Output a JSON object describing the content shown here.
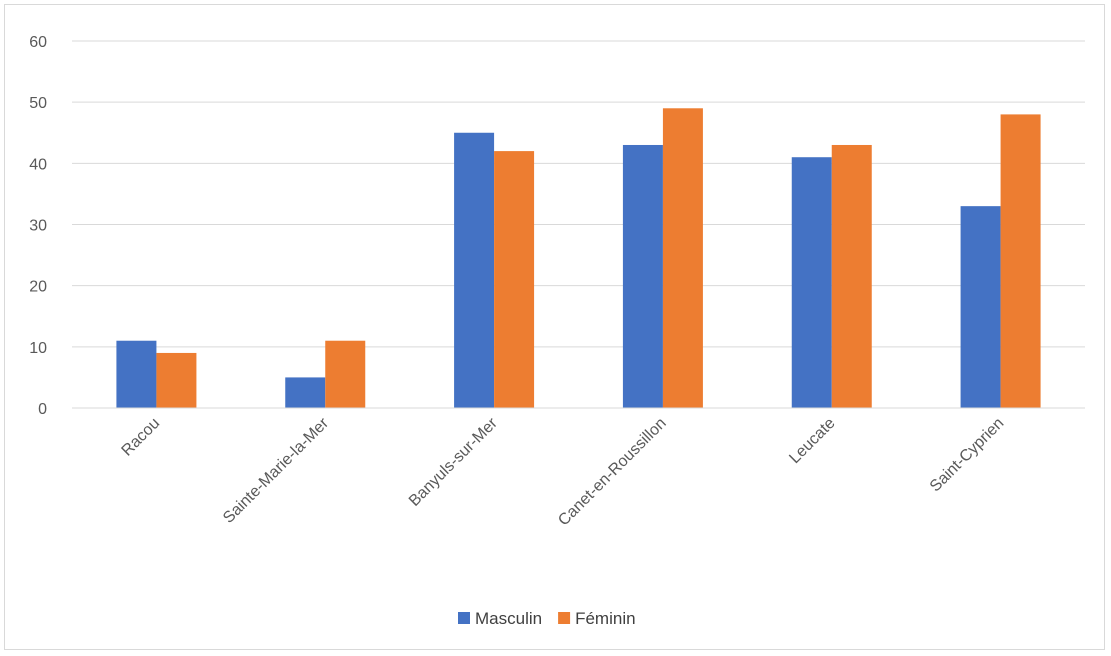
{
  "chart_data": {
    "type": "bar",
    "title": "",
    "xlabel": "",
    "ylabel": "",
    "categories": [
      "Racou",
      "Sainte-Marie-la-Mer",
      "Banyuls-sur-Mer",
      "Canet-en-Roussillon",
      "Leucate",
      "Saint-Cyprien"
    ],
    "series": [
      {
        "name": "Masculin",
        "values": [
          11,
          5,
          45,
          43,
          41,
          33
        ],
        "color": "#4472c4"
      },
      {
        "name": "Féminin",
        "values": [
          9,
          11,
          42,
          49,
          43,
          48
        ],
        "color": "#ed7d31"
      }
    ],
    "ylim": [
      0,
      60
    ],
    "yticks": [
      0,
      10,
      20,
      30,
      40,
      50,
      60
    ],
    "grid": true,
    "legend_position": "bottom"
  }
}
